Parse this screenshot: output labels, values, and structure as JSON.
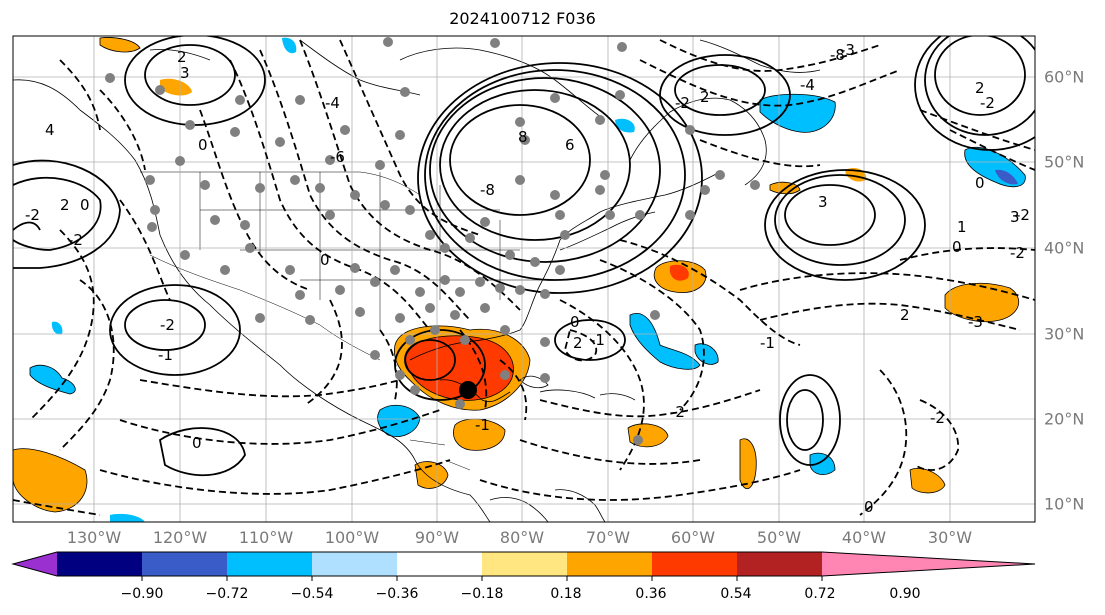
{
  "title": "2024100712 F036",
  "map": {
    "lon_ticks": [
      "130°W",
      "120°W",
      "110°W",
      "100°W",
      "90°W",
      "80°W",
      "70°W",
      "60°W",
      "50°W",
      "40°W",
      "30°W"
    ],
    "lat_ticks": [
      "60°N",
      "50°N",
      "40°N",
      "30°N",
      "20°N",
      "10°N"
    ],
    "contour_labels": [
      "2",
      "3",
      "4",
      "-2",
      "0",
      "2",
      "0",
      "-2",
      "-4",
      "-6",
      "-8",
      "6",
      "8",
      "2",
      "-2",
      "0",
      "-1",
      "-2",
      "0",
      "-1",
      "0",
      "-2",
      "2",
      "-1",
      "2",
      "3",
      "1",
      "0",
      "-2",
      "0",
      "-2",
      "-3",
      "-2",
      "0",
      "-1",
      "-4",
      "-3",
      "-8",
      "-2",
      "2",
      "3"
    ],
    "storm_marker": "black-dot",
    "station_marker_color": "#808080"
  },
  "colorbar": {
    "levels": [
      "−0.90",
      "−0.72",
      "−0.54",
      "−0.36",
      "−0.18",
      "0.18",
      "0.36",
      "0.54",
      "0.72",
      "0.90"
    ],
    "colors": [
      "#9b30d0",
      "#000080",
      "#3a5cc9",
      "#00bfff",
      "#b0e0ff",
      "#ffffff",
      "#ffe680",
      "#ffa500",
      "#ff3a00",
      "#b22222",
      "#ff85b3"
    ]
  }
}
